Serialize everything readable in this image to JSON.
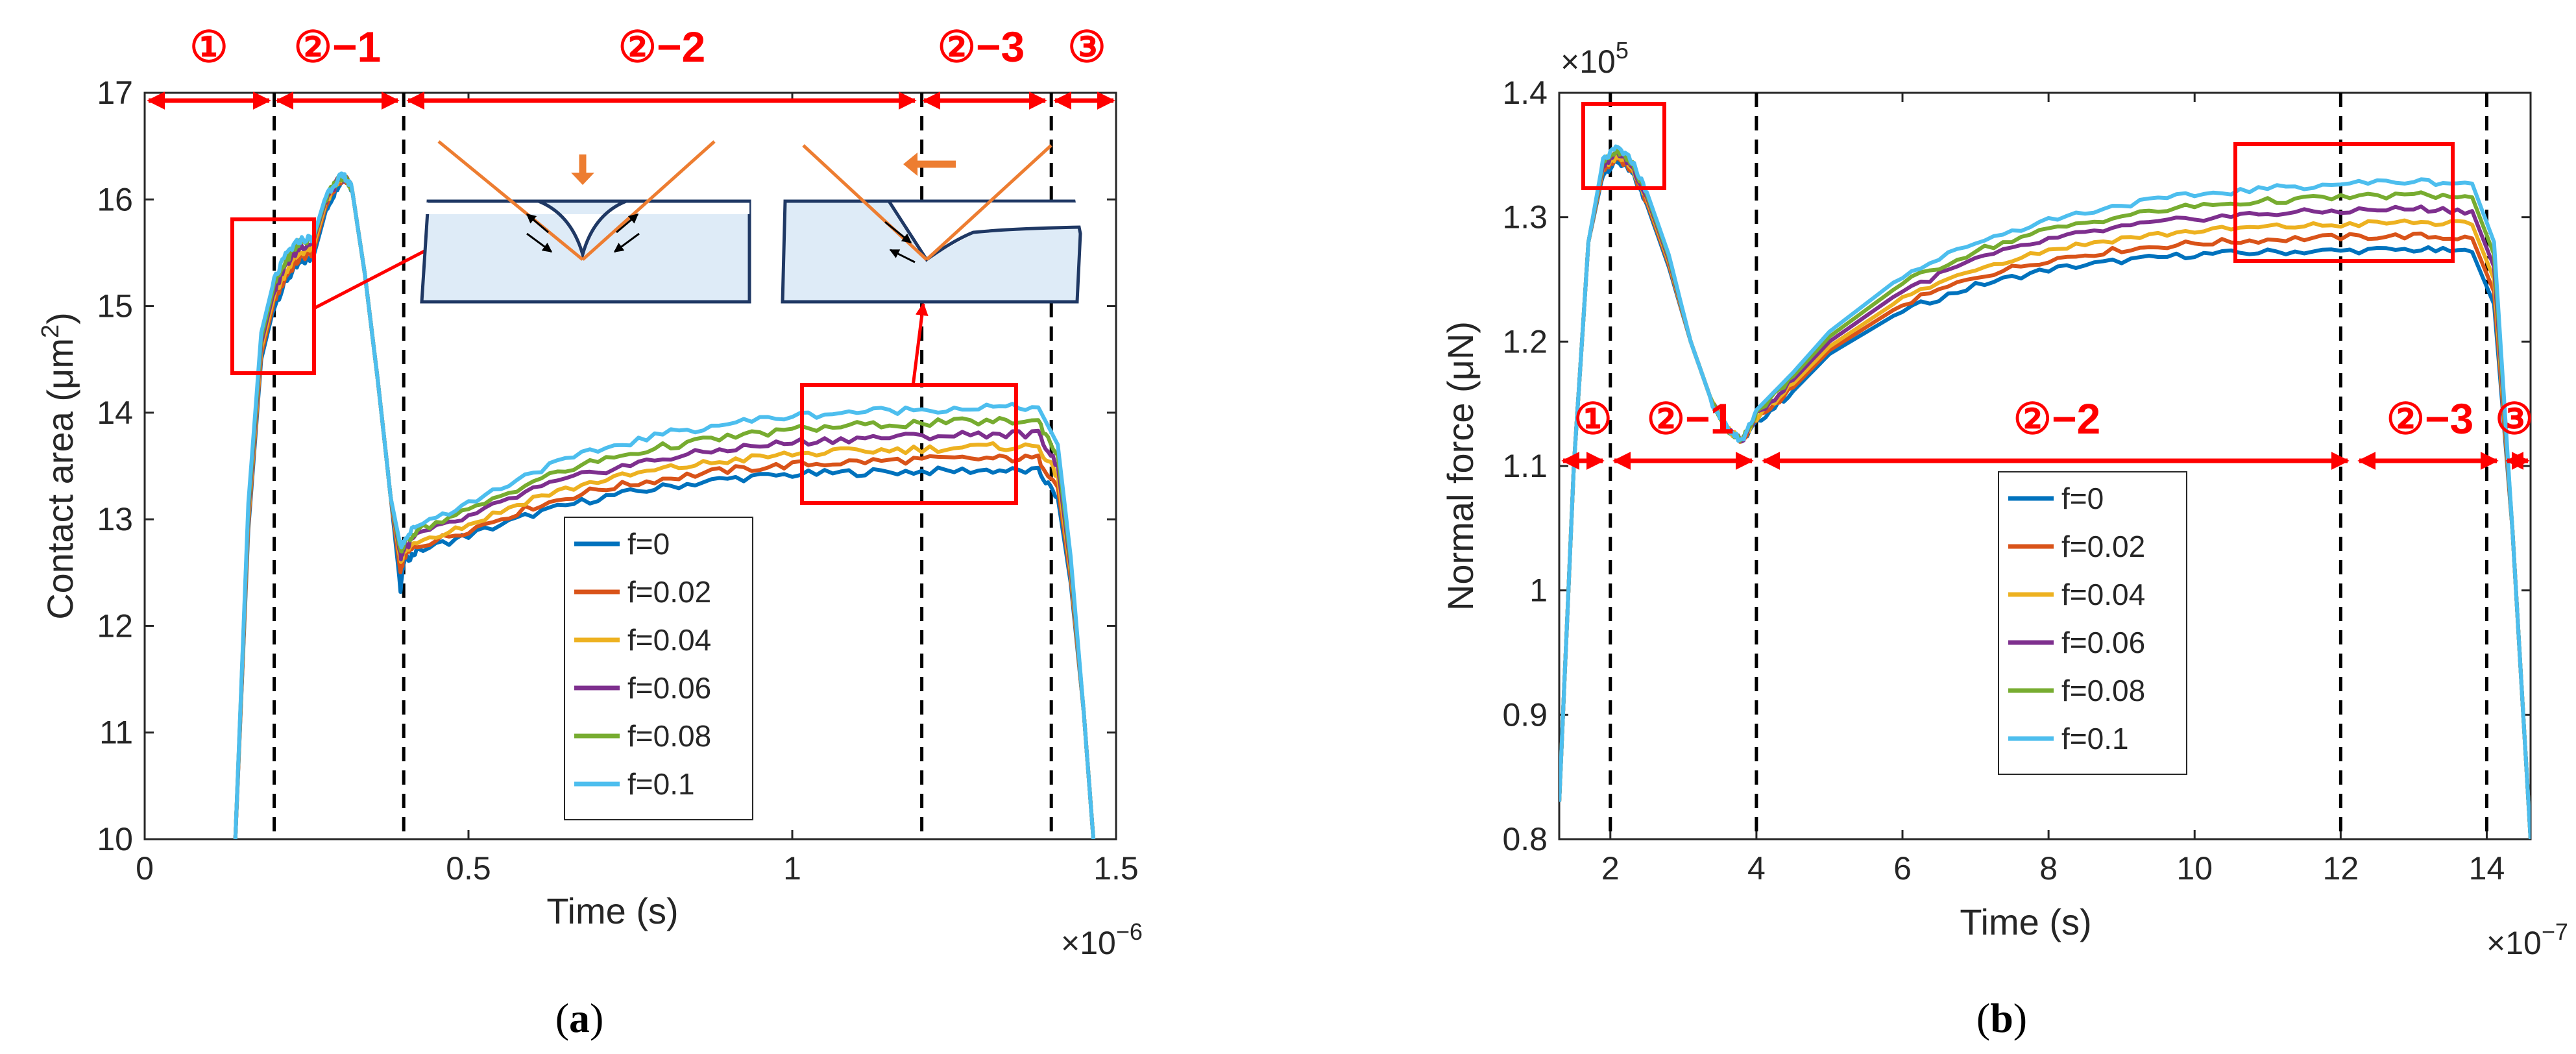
{
  "colors": {
    "series": [
      "#0072BD",
      "#D95319",
      "#EDB120",
      "#7E2F8E",
      "#77AC30",
      "#4DBEEE"
    ],
    "annotation_red": "#ff0000",
    "indenter_orange": "#ED7D31",
    "specimen_fill": "#DEEBF7",
    "specimen_edge": "#1F3864",
    "divider": "#000000"
  },
  "panels": [
    {
      "label": "(a)",
      "label_letter": "a",
      "ylabel": "Contact area (μm²)",
      "ylabel_main": "Contact area (",
      "ylabel_unit": "μm",
      "ylabel_sup": "2",
      "ylabel_close": ")",
      "xlabel": "Time (s)",
      "x_exponent": "×10",
      "x_exponent_power": "−6",
      "phases": [
        "①",
        "②−1",
        "②−2",
        "②−3",
        "③"
      ]
    },
    {
      "label": "(b)",
      "label_letter": "b",
      "ylabel": "Normal force (μN)",
      "ylabel_main": "Normal force (",
      "ylabel_unit": "μN",
      "ylabel_close": ")",
      "xlabel": "Time (s)",
      "x_exponent": "×10",
      "x_exponent_power": "−7",
      "y_exponent": "×10",
      "y_exponent_power": "5",
      "phases": [
        "①",
        "②−1",
        "②−2",
        "②−3",
        "③"
      ]
    }
  ],
  "chart_data": [
    {
      "type": "line",
      "xlabel": "Time (s)",
      "ylabel": "Contact area (μm²)",
      "x_scale_note": "×10−6",
      "xlim": [
        0,
        1.5
      ],
      "ylim": [
        10,
        17
      ],
      "xticks": [
        0,
        0.5,
        1,
        1.5
      ],
      "xtick_labels": [
        "0",
        "0.5",
        "1",
        "1.5"
      ],
      "yticks": [
        10,
        11,
        12,
        13,
        14,
        15,
        16,
        17
      ],
      "ytick_labels": [
        "10",
        "11",
        "12",
        "13",
        "14",
        "15",
        "16",
        "17"
      ],
      "phase_boundaries": [
        0.2,
        0.4,
        1.2,
        1.4
      ],
      "legend_position": "lower-center",
      "x": [
        0.14,
        0.16,
        0.18,
        0.2,
        0.22,
        0.24,
        0.26,
        0.28,
        0.3,
        0.31,
        0.32,
        0.34,
        0.36,
        0.38,
        0.395,
        0.4,
        0.42,
        0.5,
        0.6,
        0.7,
        0.8,
        0.9,
        1.0,
        1.1,
        1.2,
        1.3,
        1.38,
        1.41,
        1.43,
        1.45,
        1.465
      ],
      "series": [
        {
          "name": "f=0",
          "values": [
            10,
            12.9,
            14.5,
            15.0,
            15.25,
            15.4,
            15.45,
            15.9,
            16.15,
            16.2,
            16.1,
            15.3,
            14.3,
            13.2,
            12.35,
            12.6,
            12.7,
            12.85,
            13.05,
            13.2,
            13.3,
            13.38,
            13.42,
            13.44,
            13.45,
            13.46,
            13.45,
            13.2,
            12.4,
            11.2,
            10
          ]
        },
        {
          "name": "f=0.02",
          "values": [
            10,
            12.95,
            14.55,
            15.05,
            15.3,
            15.45,
            15.5,
            15.95,
            16.17,
            16.2,
            16.1,
            15.3,
            14.3,
            13.2,
            12.5,
            12.65,
            12.75,
            12.9,
            13.12,
            13.28,
            13.38,
            13.46,
            13.51,
            13.54,
            13.56,
            13.57,
            13.57,
            13.3,
            12.45,
            11.2,
            10
          ]
        },
        {
          "name": "f=0.04",
          "values": [
            10,
            13.0,
            14.6,
            15.1,
            15.35,
            15.5,
            15.55,
            15.97,
            16.18,
            16.2,
            16.1,
            15.3,
            14.3,
            13.2,
            12.6,
            12.68,
            12.8,
            12.95,
            13.2,
            13.36,
            13.47,
            13.55,
            13.61,
            13.64,
            13.66,
            13.68,
            13.68,
            13.4,
            12.5,
            11.2,
            10
          ]
        },
        {
          "name": "f=0.06",
          "values": [
            10,
            13.05,
            14.65,
            15.15,
            15.4,
            15.55,
            15.6,
            16.0,
            16.19,
            16.2,
            16.1,
            15.3,
            14.3,
            13.2,
            12.65,
            12.72,
            12.85,
            13.02,
            13.28,
            13.45,
            13.57,
            13.66,
            13.72,
            13.76,
            13.78,
            13.8,
            13.8,
            13.5,
            12.55,
            11.2,
            10
          ]
        },
        {
          "name": "f=0.08",
          "values": [
            10,
            13.1,
            14.7,
            15.2,
            15.45,
            15.6,
            15.62,
            16.02,
            16.2,
            16.2,
            16.1,
            15.3,
            14.3,
            13.2,
            12.7,
            12.76,
            12.9,
            13.08,
            13.36,
            13.55,
            13.68,
            13.77,
            13.84,
            13.88,
            13.9,
            13.92,
            13.92,
            13.6,
            12.6,
            11.2,
            10
          ]
        },
        {
          "name": "f=0.1",
          "values": [
            10,
            13.15,
            14.75,
            15.25,
            15.5,
            15.62,
            15.64,
            16.04,
            16.21,
            16.21,
            16.1,
            15.3,
            14.3,
            13.2,
            12.75,
            12.8,
            12.95,
            13.15,
            13.45,
            13.65,
            13.8,
            13.9,
            13.97,
            14.01,
            14.03,
            14.05,
            14.05,
            13.7,
            12.65,
            11.2,
            10
          ]
        }
      ]
    },
    {
      "type": "line",
      "xlabel": "Time (s)",
      "ylabel": "Normal force (μN)",
      "x_scale_note": "×10−7",
      "y_scale_note": "×105",
      "xlim": [
        1.3,
        14.6
      ],
      "ylim": [
        0.8,
        1.4
      ],
      "xticks": [
        2,
        4,
        6,
        8,
        10,
        12,
        14
      ],
      "xtick_labels": [
        "2",
        "4",
        "6",
        "8",
        "10",
        "12",
        "14"
      ],
      "yticks": [
        0.8,
        0.9,
        1.0,
        1.1,
        1.2,
        1.3,
        1.4
      ],
      "ytick_labels": [
        "0.8",
        "0.9",
        "1",
        "1.1",
        "1.2",
        "1.3",
        "1.4"
      ],
      "phase_boundaries": [
        2.0,
        4.0,
        12.0,
        14.0
      ],
      "legend_position": "lower-center",
      "x": [
        1.3,
        1.5,
        1.7,
        1.9,
        2.1,
        2.3,
        2.5,
        2.8,
        3.1,
        3.4,
        3.6,
        3.8,
        4.0,
        4.5,
        5.0,
        6.0,
        7.0,
        8.0,
        9.0,
        10.0,
        11.0,
        12.0,
        13.0,
        13.8,
        14.1,
        14.35,
        14.6
      ],
      "series": [
        {
          "name": "f=0",
          "values": [
            0.83,
            1.1,
            1.28,
            1.335,
            1.345,
            1.335,
            1.31,
            1.26,
            1.2,
            1.15,
            1.13,
            1.12,
            1.135,
            1.16,
            1.19,
            1.225,
            1.245,
            1.258,
            1.265,
            1.27,
            1.272,
            1.273,
            1.274,
            1.272,
            1.23,
            1.05,
            0.8
          ]
        },
        {
          "name": "f=0.02",
          "values": [
            0.83,
            1.1,
            1.28,
            1.338,
            1.348,
            1.337,
            1.312,
            1.262,
            1.2,
            1.15,
            1.13,
            1.12,
            1.137,
            1.163,
            1.193,
            1.23,
            1.252,
            1.266,
            1.274,
            1.279,
            1.282,
            1.284,
            1.285,
            1.283,
            1.24,
            1.05,
            0.8
          ]
        },
        {
          "name": "f=0.04",
          "values": [
            0.83,
            1.1,
            1.28,
            1.34,
            1.35,
            1.339,
            1.314,
            1.264,
            1.2,
            1.15,
            1.13,
            1.12,
            1.139,
            1.166,
            1.196,
            1.235,
            1.259,
            1.274,
            1.283,
            1.289,
            1.292,
            1.294,
            1.296,
            1.294,
            1.25,
            1.05,
            0.8
          ]
        },
        {
          "name": "f=0.06",
          "values": [
            0.83,
            1.1,
            1.28,
            1.342,
            1.352,
            1.341,
            1.316,
            1.266,
            1.2,
            1.15,
            1.13,
            1.12,
            1.141,
            1.169,
            1.2,
            1.241,
            1.266,
            1.282,
            1.292,
            1.299,
            1.303,
            1.305,
            1.307,
            1.305,
            1.26,
            1.05,
            0.8
          ]
        },
        {
          "name": "f=0.08",
          "values": [
            0.83,
            1.1,
            1.28,
            1.344,
            1.354,
            1.343,
            1.318,
            1.268,
            1.2,
            1.15,
            1.13,
            1.12,
            1.143,
            1.172,
            1.204,
            1.247,
            1.273,
            1.29,
            1.301,
            1.309,
            1.313,
            1.316,
            1.318,
            1.316,
            1.27,
            1.05,
            0.8
          ]
        },
        {
          "name": "f=0.1",
          "values": [
            0.83,
            1.1,
            1.28,
            1.346,
            1.356,
            1.345,
            1.32,
            1.27,
            1.2,
            1.15,
            1.13,
            1.12,
            1.145,
            1.175,
            1.208,
            1.253,
            1.28,
            1.298,
            1.31,
            1.318,
            1.323,
            1.327,
            1.329,
            1.327,
            1.28,
            1.05,
            0.8
          ]
        }
      ]
    }
  ]
}
